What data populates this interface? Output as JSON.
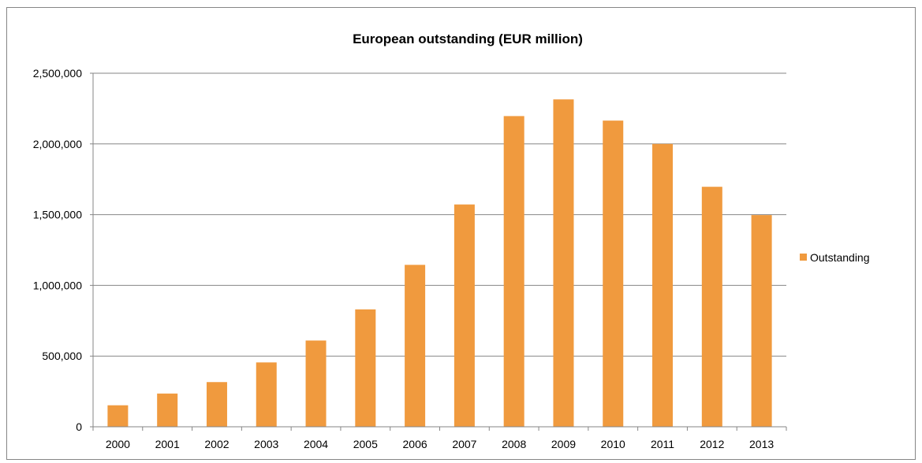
{
  "chart_data": {
    "type": "bar",
    "title": "European outstanding (EUR million)",
    "xlabel": "",
    "ylabel": "",
    "categories": [
      "2000",
      "2001",
      "2002",
      "2003",
      "2004",
      "2005",
      "2006",
      "2007",
      "2008",
      "2009",
      "2010",
      "2011",
      "2012",
      "2013"
    ],
    "series": [
      {
        "name": "Outstanding",
        "color": "#f09a3e",
        "values": [
          152000,
          235000,
          316000,
          455000,
          610000,
          830000,
          1145000,
          1572000,
          2197000,
          2315000,
          2165000,
          2000000,
          1697000,
          1497000
        ]
      }
    ],
    "ylim": [
      0,
      2500000
    ],
    "yticks": [
      0,
      500000,
      1000000,
      1500000,
      2000000,
      2500000
    ],
    "ytick_labels": [
      "0",
      "500,000",
      "1,000,000",
      "1,500,000",
      "2,000,000",
      "2,500,000"
    ],
    "grid": true,
    "legend_position": "right"
  }
}
